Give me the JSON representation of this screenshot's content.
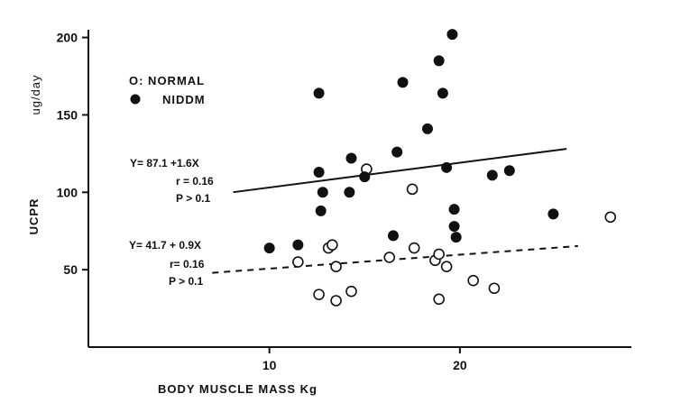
{
  "chart_data": {
    "type": "scatter",
    "title": "",
    "xlabel": "BODY  MUSCLE  MASS  Kg",
    "ylabel": "UCPR",
    "ylabel_unit": "ug/day",
    "xlim": [
      0.5,
      29
    ],
    "ylim": [
      0,
      205
    ],
    "x_ticks": [
      10,
      20
    ],
    "y_ticks": [
      50,
      100,
      150,
      200
    ],
    "grid": false,
    "legend_position": "top-left",
    "series": [
      {
        "name": "NORMAL",
        "marker": "open-circle",
        "x": [
          11.5,
          12.6,
          13.1,
          13.3,
          13.5,
          13.5,
          14.3,
          15.1,
          16.3,
          17.5,
          17.6,
          18.7,
          18.9,
          18.9,
          19.3,
          20.7,
          21.8,
          27.9
        ],
        "y": [
          55,
          34,
          64,
          66,
          52,
          30,
          36,
          115,
          58,
          102,
          64,
          56,
          60,
          31,
          52,
          43,
          38,
          84
        ]
      },
      {
        "name": "NIDDM",
        "marker": "filled-circle",
        "x": [
          10.0,
          11.5,
          12.6,
          12.6,
          12.7,
          12.8,
          14.2,
          14.3,
          15.0,
          16.5,
          16.7,
          17.0,
          18.3,
          18.9,
          19.1,
          19.3,
          19.6,
          19.7,
          19.7,
          19.8,
          21.7,
          22.6,
          24.9
        ],
        "y": [
          64,
          66,
          164,
          113,
          88,
          100,
          100,
          122,
          110,
          72,
          126,
          171,
          141,
          185,
          164,
          116,
          202,
          89,
          78,
          71,
          111,
          114,
          86
        ]
      }
    ],
    "regression_lines": [
      {
        "series": "NIDDM",
        "style": "solid",
        "slope": 1.6,
        "intercept": 87.1,
        "x_range": [
          8.1,
          25.6
        ]
      },
      {
        "series": "NORMAL",
        "style": "dashed",
        "slope": 0.9,
        "intercept": 41.7,
        "x_range": [
          7.0,
          26.2
        ]
      }
    ],
    "annotations": {
      "niddm": [
        "Y= 87.1 +1.6X",
        "r = 0.16",
        "P > 0.1"
      ],
      "normal": [
        "Y= 41.7 + 0.9X",
        "r= 0.16",
        "P > 0.1"
      ]
    },
    "legend": {
      "normal_label": "O:  NORMAL",
      "niddm_label": "NIDDM"
    }
  }
}
